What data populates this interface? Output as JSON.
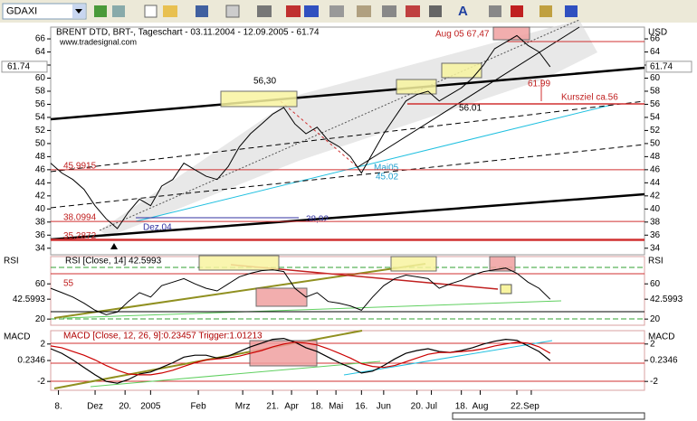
{
  "toolbar": {
    "symbol": "GDAXI",
    "font_icon": "A"
  },
  "chart_data": [
    {
      "type": "line",
      "title": "BRENT  DTD, BRT-, Tageschart - 03.11.2004 - 12.09.2005 - 61.74",
      "subtitle": "www.tradesignal.com",
      "y_axis_label": "USD",
      "color": "#000000",
      "values": [
        47.0,
        45.5,
        44.5,
        43.0,
        40.5,
        38.5,
        37.0,
        39.5,
        41.5,
        40.5,
        43.5,
        44.5,
        47.0,
        46.0,
        45.0,
        44.5,
        46.5,
        49.5,
        51.5,
        53.0,
        54.5,
        55.5,
        53.0,
        51.5,
        52.5,
        50.5,
        49.5,
        48.0,
        45.5,
        48.5,
        51.5,
        54.0,
        56.5,
        57.5,
        58.0,
        56.5,
        57.5,
        58.5,
        60.0,
        62.0,
        64.5,
        65.5,
        66.5,
        65.0,
        64.0,
        61.74
      ],
      "xlim": [
        0,
        53.5
      ],
      "xticks": [
        {
          "value": 0.7,
          "label": "8."
        },
        {
          "value": 4,
          "label": "Dez"
        },
        {
          "value": 6.7,
          "label": "20."
        },
        {
          "value": 9,
          "label": "2005"
        },
        {
          "value": 13.3,
          "label": "Feb"
        },
        {
          "value": 17.3,
          "label": "Mrz"
        },
        {
          "value": 20,
          "label": "21."
        },
        {
          "value": 21.7,
          "label": "Apr"
        },
        {
          "value": 24,
          "label": "18."
        },
        {
          "value": 25.7,
          "label": "Mai"
        },
        {
          "value": 28,
          "label": "16."
        },
        {
          "value": 30,
          "label": "Jun"
        },
        {
          "value": 33,
          "label": "20."
        },
        {
          "value": 34.3,
          "label": "Jul"
        },
        {
          "value": 37,
          "label": "18."
        },
        {
          "value": 38.7,
          "label": "Aug"
        },
        {
          "value": 42,
          "label": "22."
        },
        {
          "value": 43.3,
          "label": "Sep"
        }
      ],
      "ylim": [
        33,
        67.8
      ],
      "yticks": [
        34,
        36,
        38,
        40,
        42,
        44,
        46,
        48,
        50,
        52,
        54,
        56,
        58,
        60,
        62,
        64,
        66
      ],
      "levels": [
        45.9915,
        38.0994,
        35.2872
      ],
      "annotations": [
        "56,30",
        "Aug 05 67,47",
        "61.99",
        "Kursziel ca.56",
        "56.01",
        "38,92",
        "Dez.04",
        "Mai05",
        "45.02"
      ]
    },
    {
      "type": "line",
      "title": "RSI [Close, 14] 42.5993",
      "y_axis_label": "RSI",
      "color": "#000000",
      "values": [
        55,
        50,
        45,
        38,
        30,
        25,
        28,
        40,
        50,
        45,
        58,
        62,
        66,
        60,
        55,
        52,
        60,
        68,
        72,
        75,
        76,
        74,
        55,
        45,
        50,
        40,
        38,
        35,
        30,
        45,
        58,
        66,
        70,
        68,
        66,
        55,
        60,
        64,
        70,
        74,
        76,
        78,
        72,
        62,
        55,
        42.5993
      ],
      "ylim": [
        13,
        91
      ],
      "yticks": [
        20,
        42.5993,
        60
      ],
      "annotations": [
        "55"
      ]
    },
    {
      "type": "line",
      "title": "MACD [Close, 12, 26, 9]:0.23457 Trigger:1.01213",
      "y_axis_label": "MACD",
      "series": [
        {
          "name": "MACD",
          "color": "#000000",
          "values": [
            1.5,
            1.0,
            0.3,
            -0.5,
            -1.3,
            -2.0,
            -2.2,
            -1.8,
            -1.2,
            -1.0,
            -0.5,
            0.0,
            0.6,
            0.8,
            0.8,
            0.5,
            0.7,
            1.2,
            1.7,
            2.1,
            2.5,
            2.6,
            2.2,
            1.6,
            1.2,
            0.6,
            0.0,
            -0.5,
            -1.1,
            -0.9,
            -0.3,
            0.4,
            1.0,
            1.3,
            1.5,
            1.2,
            1.1,
            1.3,
            1.6,
            2.0,
            2.3,
            2.5,
            2.4,
            1.8,
            1.2,
            0.23457
          ]
        },
        {
          "name": "Trigger",
          "color": "#cc0000",
          "values": [
            1.8,
            1.6,
            1.2,
            0.8,
            0.3,
            -0.3,
            -0.8,
            -1.2,
            -1.3,
            -1.3,
            -1.1,
            -0.8,
            -0.4,
            0.0,
            0.3,
            0.4,
            0.5,
            0.7,
            1.0,
            1.3,
            1.7,
            2.0,
            2.2,
            2.1,
            1.9,
            1.5,
            1.0,
            0.5,
            -0.1,
            -0.4,
            -0.5,
            -0.3,
            0.1,
            0.5,
            0.9,
            1.1,
            1.1,
            1.2,
            1.3,
            1.5,
            1.8,
            2.0,
            2.2,
            2.1,
            1.7,
            1.01213
          ]
        }
      ],
      "ylim": [
        -2.95,
        3.43
      ],
      "yticks": [
        -2,
        0.2346,
        2
      ]
    }
  ]
}
